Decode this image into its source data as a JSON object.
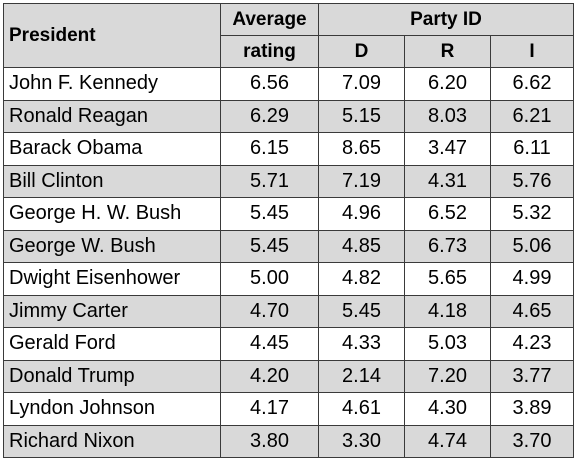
{
  "chart_data": {
    "type": "table",
    "headers": {
      "president": "President",
      "average_rating": [
        "Average",
        "rating"
      ],
      "party_id": "Party ID",
      "parties": [
        "D",
        "R",
        "I"
      ]
    },
    "rows": [
      {
        "president": "John F. Kennedy",
        "average": "6.56",
        "D": "7.09",
        "R": "6.20",
        "I": "6.62"
      },
      {
        "president": "Ronald Reagan",
        "average": "6.29",
        "D": "5.15",
        "R": "8.03",
        "I": "6.21"
      },
      {
        "president": "Barack Obama",
        "average": "6.15",
        "D": "8.65",
        "R": "3.47",
        "I": "6.11"
      },
      {
        "president": "Bill Clinton",
        "average": "5.71",
        "D": "7.19",
        "R": "4.31",
        "I": "5.76"
      },
      {
        "president": "George H. W. Bush",
        "average": "5.45",
        "D": "4.96",
        "R": "6.52",
        "I": "5.32"
      },
      {
        "president": "George W. Bush",
        "average": "5.45",
        "D": "4.85",
        "R": "6.73",
        "I": "5.06"
      },
      {
        "president": "Dwight Eisenhower",
        "average": "5.00",
        "D": "4.82",
        "R": "5.65",
        "I": "4.99"
      },
      {
        "president": "Jimmy Carter",
        "average": "4.70",
        "D": "5.45",
        "R": "4.18",
        "I": "4.65"
      },
      {
        "president": "Gerald Ford",
        "average": "4.45",
        "D": "4.33",
        "R": "5.03",
        "I": "4.23"
      },
      {
        "president": "Donald Trump",
        "average": "4.20",
        "D": "2.14",
        "R": "7.20",
        "I": "3.77"
      },
      {
        "president": "Lyndon Johnson",
        "average": "4.17",
        "D": "4.61",
        "R": "4.30",
        "I": "3.89"
      },
      {
        "president": "Richard Nixon",
        "average": "3.80",
        "D": "3.30",
        "R": "4.74",
        "I": "3.70"
      }
    ]
  },
  "colors": {
    "header_background": "#d9d9d9",
    "alternate_row_background": "#d9d9d9",
    "row_background": "#ffffff",
    "border": "#3a3a3a"
  }
}
